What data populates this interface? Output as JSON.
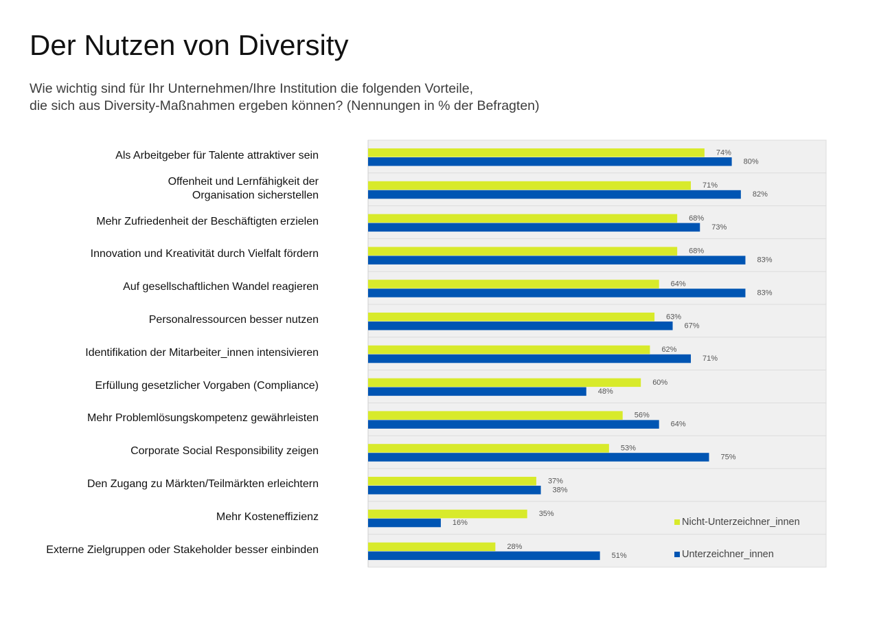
{
  "header": {
    "title": "Der Nutzen von Diversity",
    "subtitle_line1": "Wie wichtig sind für Ihr Unternehmen/Ihre Institution die folgenden Vorteile,",
    "subtitle_line2": "die sich aus Diversity-Maßnahmen ergeben können? (Nennungen in % der Befragten)"
  },
  "legend": {
    "items": [
      {
        "name": "Nicht-Unterzeichner_innen",
        "color": "#d8ea2b"
      },
      {
        "name": "Unterzeichner_innen",
        "color": "#0055b3"
      }
    ]
  },
  "chart_data": {
    "type": "bar",
    "orientation": "horizontal",
    "title": "Der Nutzen von Diversity",
    "xlabel": "",
    "ylabel": "",
    "xlim": [
      0,
      100
    ],
    "unit": "%",
    "grid": false,
    "legend_position": "bottom-right",
    "categories": [
      [
        "Als Arbeitgeber für Talente attraktiver sein"
      ],
      [
        "Offenheit und Lernfähigkeit der",
        "Organisation sicherstellen"
      ],
      [
        "Mehr Zufriedenheit der Beschäftigten erzielen"
      ],
      [
        "Innovation und Kreativität durch Vielfalt fördern"
      ],
      [
        "Auf gesellschaftlichen Wandel reagieren"
      ],
      [
        "Personalressourcen besser nutzen"
      ],
      [
        "Identifikation der Mitarbeiter_innen intensivieren"
      ],
      [
        "Erfüllung gesetzlicher Vorgaben (Compliance)"
      ],
      [
        "Mehr Problemlösungskompetenz gewährleisten"
      ],
      [
        "Corporate Social Responsibility zeigen"
      ],
      [
        "Den Zugang zu Märkten/Teilmärkten erleichtern"
      ],
      [
        "Mehr Kosteneffizienz"
      ],
      [
        "Externe Zielgruppen oder Stakeholder besser einbinden"
      ]
    ],
    "series": [
      {
        "name": "Nicht-Unterzeichner_innen",
        "color": "#d8ea2b",
        "values": [
          74,
          71,
          68,
          68,
          64,
          63,
          62,
          60,
          56,
          53,
          37,
          35,
          28
        ]
      },
      {
        "name": "Unterzeichner_innen",
        "color": "#0055b3",
        "values": [
          80,
          82,
          73,
          83,
          83,
          67,
          71,
          48,
          64,
          75,
          38,
          16,
          51
        ]
      }
    ]
  }
}
